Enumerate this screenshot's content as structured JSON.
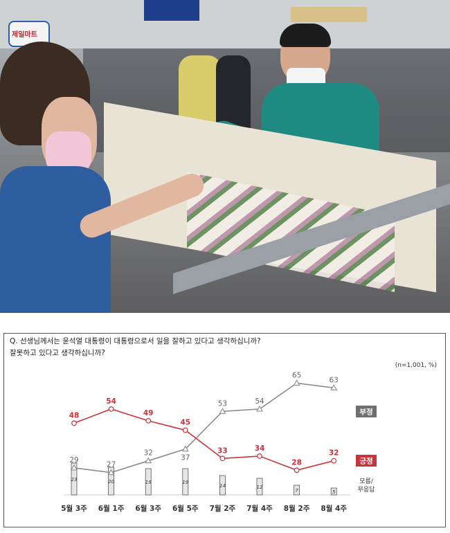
{
  "question": "Q. 선생님께서는 윤석열 대통령이 대통령으로서 일을 잘하고 있다고 생각하십니까?\n잘못하고 있다고 생각하십니까?",
  "note": "(n=1,001,  %)",
  "photo": {
    "store_sign": "제일마트"
  },
  "colors": {
    "positive": "#c9333a",
    "negative": "#8c8c8c",
    "unsure_fill": "#e6e6e6"
  },
  "chart_data": {
    "type": "line",
    "title": "",
    "xlabel": "",
    "ylabel": "",
    "categories": [
      "5월 3주",
      "6월 1주",
      "6월 3주",
      "6월 5주",
      "7월 2주",
      "7월 4주",
      "8월 2주",
      "8월 4주"
    ],
    "ylim": [
      0,
      70
    ],
    "grid": false,
    "legend": "right",
    "series": [
      {
        "name": "부정",
        "marker": "triangle",
        "values": [
          29,
          27,
          32,
          37,
          53,
          54,
          65,
          63
        ]
      },
      {
        "name": "긍정",
        "marker": "circle",
        "values": [
          48,
          54,
          49,
          45,
          33,
          34,
          28,
          32
        ]
      },
      {
        "name": "모름/\n무응답",
        "type": "bar",
        "values": [
          23,
          20,
          19,
          19,
          14,
          12,
          7,
          5
        ]
      }
    ]
  }
}
